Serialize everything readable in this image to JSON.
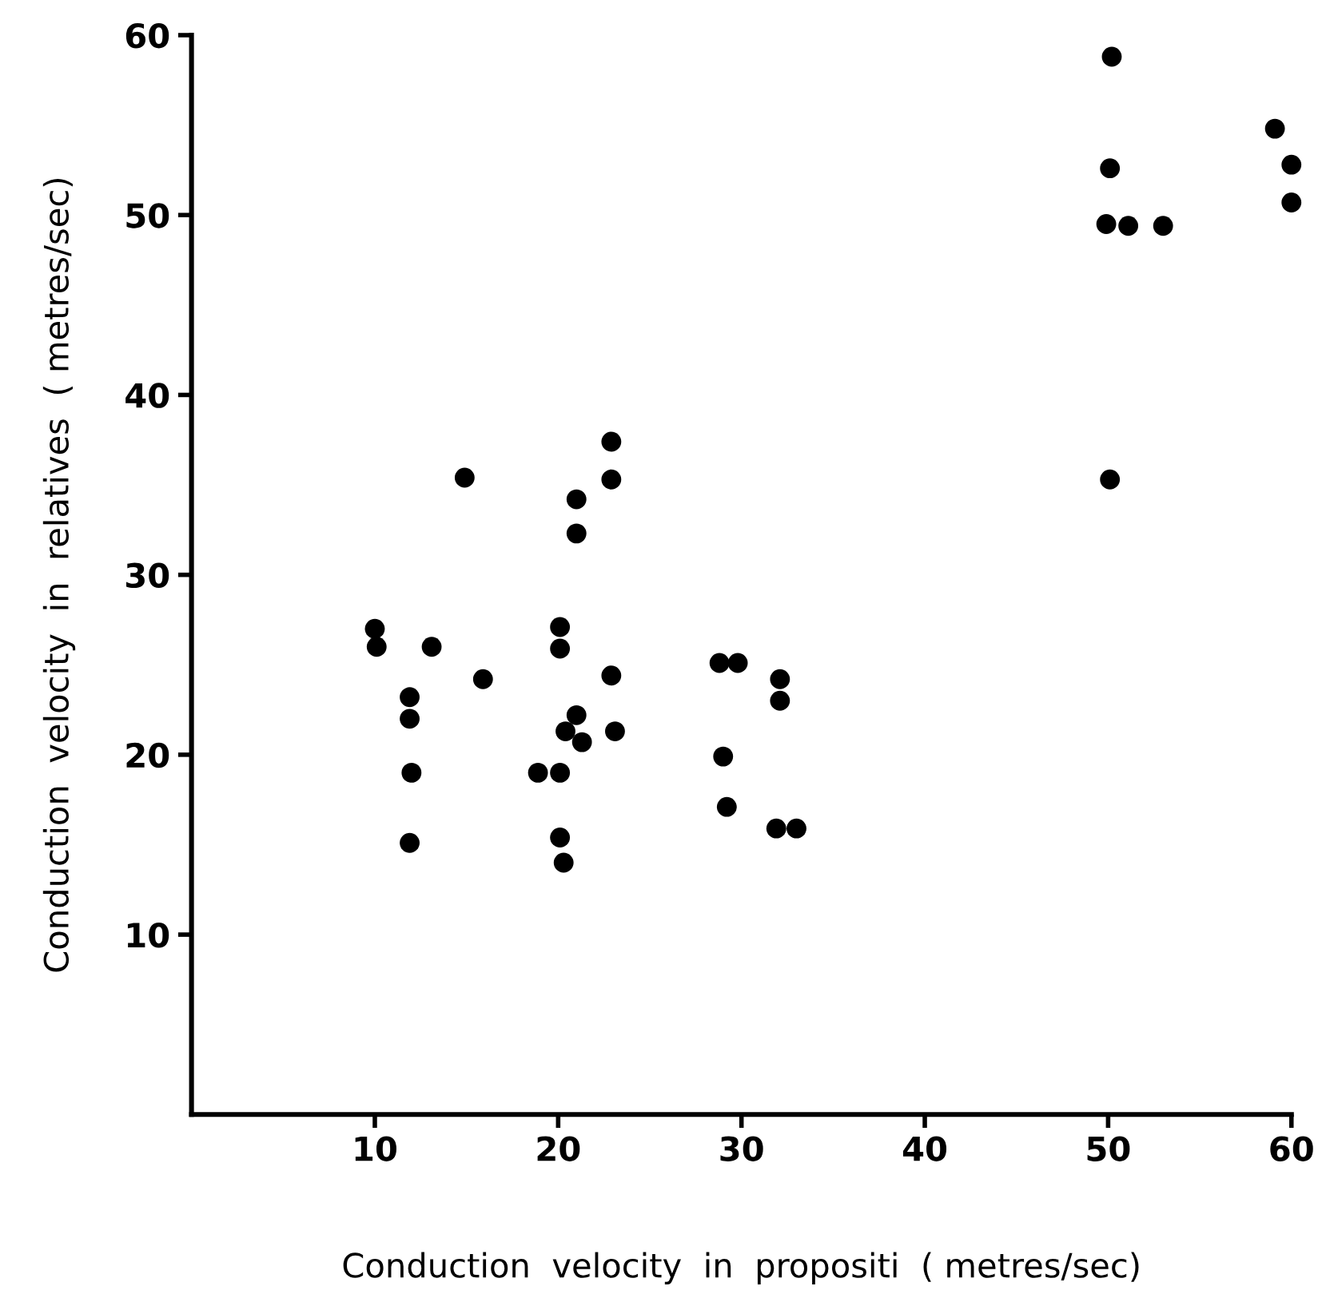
{
  "chart_data": {
    "type": "scatter",
    "xlabel": "Conduction  velocity  in  propositi  ( metres/sec)",
    "ylabel": "Conduction  velocity  in  relatives  ( metres/sec)",
    "xlim": [
      0,
      60
    ],
    "xticks": [
      10,
      20,
      30,
      40,
      50,
      60
    ],
    "ylim": [
      0,
      60
    ],
    "yticks": [
      10,
      20,
      30,
      40,
      50,
      60
    ],
    "grid": false,
    "marker": "circle",
    "series": [
      {
        "color": "#000000",
        "x": [
          10.0,
          10.1,
          13.1,
          11.9,
          11.9,
          12.0,
          11.9,
          14.9,
          15.9,
          18.9,
          20.1,
          20.1,
          20.1,
          20.1,
          20.3,
          21.0,
          20.4,
          21.3,
          23.1,
          22.9,
          21.0,
          21.0,
          22.9,
          22.9,
          28.8,
          29.8,
          32.1,
          32.1,
          29.0,
          29.2,
          31.9,
          33.0,
          50.2,
          50.1,
          49.9,
          51.1,
          53.0,
          59.1,
          60.0,
          60.0,
          50.1
        ],
        "values": [
          27.0,
          26.0,
          26.0,
          23.2,
          22.0,
          19.0,
          15.1,
          35.4,
          24.2,
          19.0,
          19.0,
          27.1,
          25.9,
          15.4,
          14.0,
          22.2,
          21.3,
          20.7,
          21.3,
          24.4,
          34.2,
          32.3,
          35.3,
          37.4,
          25.1,
          25.1,
          24.2,
          23.0,
          19.9,
          17.1,
          15.9,
          15.9,
          58.8,
          52.6,
          49.5,
          49.4,
          49.4,
          54.8,
          52.8,
          50.7,
          35.3
        ]
      }
    ]
  }
}
